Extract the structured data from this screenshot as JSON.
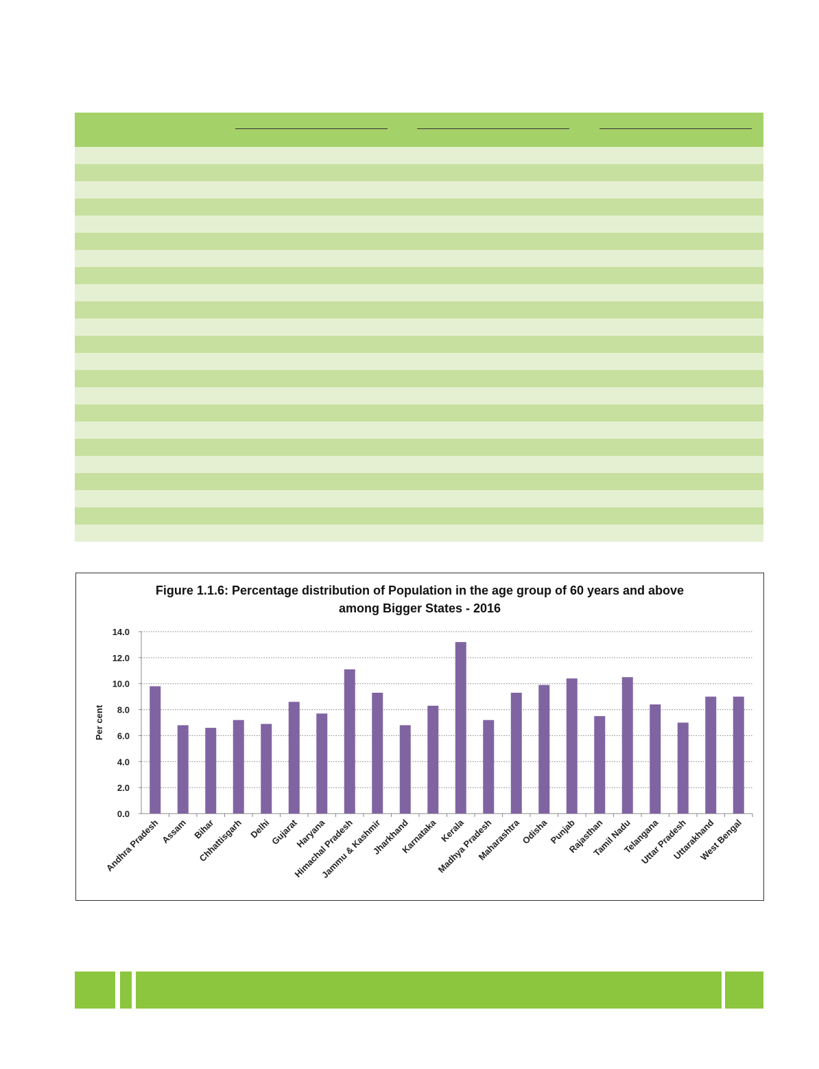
{
  "table": {
    "row_count": 23
  },
  "figure": {
    "title_line1": "Figure 1.1.6: Percentage distribution of Population in the age group of 60 years and above",
    "title_line2": "among Bigger States - 2016"
  },
  "colors": {
    "header_green": "#a5d169",
    "stripe_light": "#e5f0d3",
    "stripe_dark": "#c8e09f",
    "bar": "#8064a2",
    "footer_green": "#8cc63f"
  },
  "chart_data": {
    "type": "bar",
    "title": "Figure 1.1.6: Percentage distribution of Population in the age group of 60 years and above among Bigger States - 2016",
    "xlabel": "",
    "ylabel": "Per cent",
    "ylim": [
      0,
      14
    ],
    "yticks": [
      "0.0",
      "2.0",
      "4.0",
      "6.0",
      "8.0",
      "10.0",
      "12.0",
      "14.0"
    ],
    "grid": true,
    "categories": [
      "Andhra Pradesh",
      "Assam",
      "Bihar",
      "Chhattisgarh",
      "Delhi",
      "Gujarat",
      "Haryana",
      "Himachal Pradesh",
      "Jammu & Kashmir",
      "Jharkhand",
      "Karnataka",
      "Kerala",
      "Madhya Pradesh",
      "Maharashtra",
      "Odisha",
      "Punjab",
      "Rajasthan",
      "Tamil Nadu",
      "Telangana",
      "Uttar Pradesh",
      "Uttarakhand",
      "West Bengal"
    ],
    "values": [
      9.8,
      6.8,
      6.6,
      7.2,
      6.9,
      8.6,
      7.7,
      11.1,
      9.3,
      6.8,
      8.3,
      13.2,
      7.2,
      9.3,
      9.9,
      10.4,
      7.5,
      10.5,
      8.4,
      7.0,
      9.0,
      9.0
    ]
  }
}
